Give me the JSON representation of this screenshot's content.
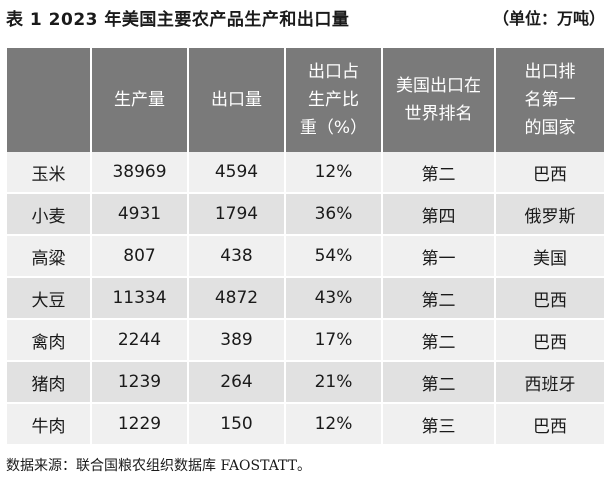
{
  "title": "表 1    2023 年美国主要农产品生产和出口量",
  "unit": "（单位：万吨）",
  "table": {
    "headers": [
      [
        ""
      ],
      [
        "生产量"
      ],
      [
        "出口量"
      ],
      [
        "出口占",
        "生产比",
        "重（%）"
      ],
      [
        "美国出口在",
        "世界排名"
      ],
      [
        "出口排",
        "名第一",
        "的国家"
      ]
    ],
    "rows": [
      [
        "玉米",
        "38969",
        "4594",
        "12%",
        "第二",
        "巴西"
      ],
      [
        "小麦",
        "4931",
        "1794",
        "36%",
        "第四",
        "俄罗斯"
      ],
      [
        "高粱",
        "807",
        "438",
        "54%",
        "第一",
        "美国"
      ],
      [
        "大豆",
        "11334",
        "4872",
        "43%",
        "第二",
        "巴西"
      ],
      [
        "禽肉",
        "2244",
        "389",
        "17%",
        "第二",
        "巴西"
      ],
      [
        "猪肉",
        "1239",
        "264",
        "21%",
        "第二",
        "西班牙"
      ],
      [
        "牛肉",
        "1229",
        "150",
        "12%",
        "第三",
        "巴西"
      ]
    ]
  },
  "source_note": "数据来源：联合国粮农组织数据库 FAOSTATT。"
}
